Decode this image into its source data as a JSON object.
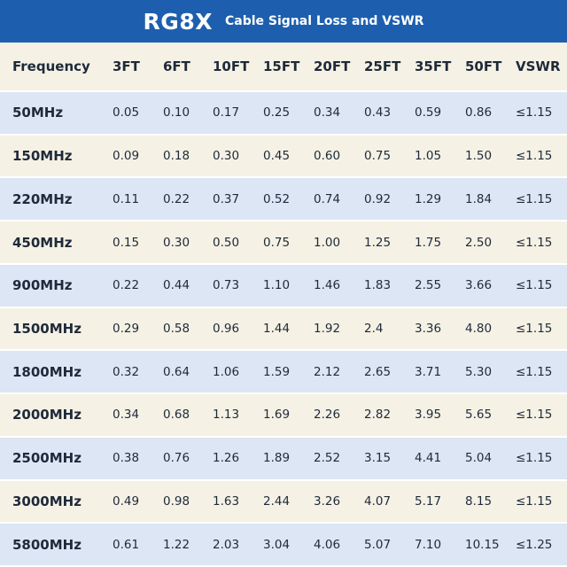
{
  "header": {
    "title": "RG8X",
    "subtitle": "Cable Signal Loss and VSWR"
  },
  "table": {
    "columns": [
      "Frequency",
      "3FT",
      "6FT",
      "10FT",
      "15FT",
      "20FT",
      "25FT",
      "35FT",
      "50FT",
      "VSWR"
    ],
    "rows": [
      [
        "50MHz",
        "0.05",
        "0.10",
        "0.17",
        "0.25",
        "0.34",
        "0.43",
        "0.59",
        "0.86",
        "≤1.15"
      ],
      [
        "150MHz",
        "0.09",
        "0.18",
        "0.30",
        "0.45",
        "0.60",
        "0.75",
        "1.05",
        "1.50",
        "≤1.15"
      ],
      [
        "220MHz",
        "0.11",
        "0.22",
        "0.37",
        "0.52",
        "0.74",
        "0.92",
        "1.29",
        "1.84",
        "≤1.15"
      ],
      [
        "450MHz",
        "0.15",
        "0.30",
        "0.50",
        "0.75",
        "1.00",
        "1.25",
        "1.75",
        "2.50",
        "≤1.15"
      ],
      [
        "900MHz",
        "0.22",
        "0.44",
        "0.73",
        "1.10",
        "1.46",
        "1.83",
        "2.55",
        "3.66",
        "≤1.15"
      ],
      [
        "1500MHz",
        "0.29",
        "0.58",
        "0.96",
        "1.44",
        "1.92",
        "2.4",
        "3.36",
        "4.80",
        "≤1.15"
      ],
      [
        "1800MHz",
        "0.32",
        "0.64",
        "1.06",
        "1.59",
        "2.12",
        "2.65",
        "3.71",
        "5.30",
        "≤1.15"
      ],
      [
        "2000MHz",
        "0.34",
        "0.68",
        "1.13",
        "1.69",
        "2.26",
        "2.82",
        "3.95",
        "5.65",
        "≤1.15"
      ],
      [
        "2500MHz",
        "0.38",
        "0.76",
        "1.26",
        "1.89",
        "2.52",
        "3.15",
        "4.41",
        "5.04",
        "≤1.15"
      ],
      [
        "3000MHz",
        "0.49",
        "0.98",
        "1.63",
        "2.44",
        "3.26",
        "4.07",
        "5.17",
        "8.15",
        "≤1.15"
      ],
      [
        "5800MHz",
        "0.61",
        "1.22",
        "2.03",
        "3.04",
        "4.06",
        "5.07",
        "7.10",
        "10.15",
        "≤1.25"
      ]
    ]
  }
}
